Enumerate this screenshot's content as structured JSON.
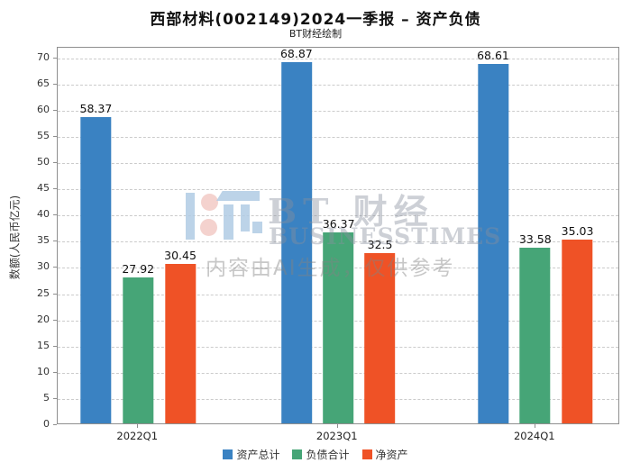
{
  "title": "西部材料(002149)2024一季报 – 资产负债",
  "subtitle": "BT财经绘制",
  "watermark": {
    "brand": "BT 财经",
    "brand_sub": "BUSINESSTIMES",
    "notice": "内容由AI生成，仅供参考"
  },
  "colors": {
    "asset_blue": "#3a82c2",
    "debt_green": "#46a577",
    "equity_orange": "#ef5226",
    "frame_gray": "#8f8f8f",
    "grid_gray": "#cbcbcb"
  },
  "chart_data": {
    "type": "bar",
    "title": "西部材料(002149)2024一季报 – 资产负债",
    "subtitle": "BT财经绘制",
    "xlabel": "",
    "ylabel": "数额(人民币亿元)",
    "categories": [
      "2022Q1",
      "2023Q1",
      "2024Q1"
    ],
    "series": [
      {
        "name": "资产总计",
        "color": "#3a82c2",
        "values": [
          58.37,
          68.87,
          68.61
        ],
        "labels": [
          "58.37",
          "68.87",
          "68.61"
        ]
      },
      {
        "name": "负债合计",
        "color": "#46a577",
        "values": [
          27.92,
          36.37,
          33.58
        ],
        "labels": [
          "27.92",
          "36.37",
          "33.58"
        ]
      },
      {
        "name": "净资产",
        "color": "#ef5226",
        "values": [
          30.45,
          32.5,
          35.03
        ],
        "labels": [
          "30.45",
          "32.5",
          "35.03"
        ]
      }
    ],
    "ylim": [
      0,
      72
    ],
    "yticks": [
      0,
      5,
      10,
      15,
      20,
      25,
      30,
      35,
      40,
      45,
      50,
      55,
      60,
      65,
      70
    ],
    "grid": true,
    "grid_style": "dashed",
    "legend_position": "bottom"
  }
}
